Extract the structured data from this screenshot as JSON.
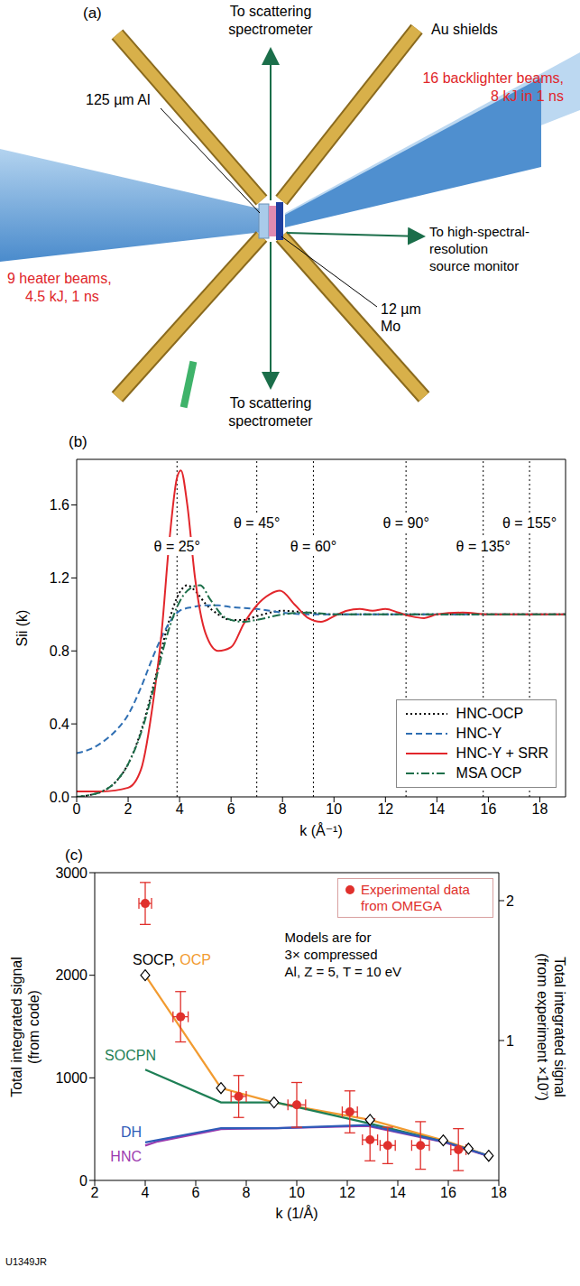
{
  "diagram": {
    "panel_label": "(a)",
    "arrow_top": [
      "To scattering",
      "spectrometer"
    ],
    "arrow_bottom": [
      "To scattering",
      "spectrometer"
    ],
    "arrow_right": [
      "To high-spectral-",
      "resolution",
      "source monitor"
    ],
    "shields": "Au shields",
    "al_layer": "125 µm Al",
    "mo_layer": [
      "12 µm",
      "Mo"
    ],
    "backlighter": [
      "16 backlighter beams,",
      "8 kJ in 1 ns"
    ],
    "heater": [
      "9 heater beams,",
      "4.5 kJ, 1 ns"
    ]
  },
  "chart_data": [
    {
      "panel_label": "(b)",
      "type": "line",
      "xlabel": "k (Å⁻¹)",
      "ylabel": "Sii (k)",
      "xlim": [
        0,
        19
      ],
      "xticks": [
        0,
        2,
        4,
        6,
        8,
        10,
        12,
        14,
        16,
        18
      ],
      "ylim": [
        0,
        1.85
      ],
      "yticks": [
        {
          "value": 0,
          "label": "0.0"
        },
        0.4,
        0.8,
        1.2,
        1.6
      ],
      "legend": "lower right",
      "annotations": [
        {
          "text": "θ = 25°",
          "x": 3.9,
          "y": 1.37
        },
        {
          "text": "θ = 45°",
          "x": 7.0,
          "y": 1.5
        },
        {
          "text": "θ = 60°",
          "x": 9.2,
          "y": 1.37
        },
        {
          "text": "θ = 90°",
          "x": 12.8,
          "y": 1.5
        },
        {
          "text": "θ = 135°",
          "x": 15.8,
          "y": 1.37
        },
        {
          "text": "θ = 155°",
          "x": 17.6,
          "y": 1.5
        }
      ],
      "series": [
        {
          "name": "HNC-OCP",
          "color": "#000000",
          "line_style": "dotted",
          "x": [
            0,
            0.5,
            1,
            1.5,
            2,
            2.5,
            3,
            3.5,
            4,
            4.3,
            4.6,
            5,
            5.5,
            6,
            6.5,
            7,
            8,
            9,
            10,
            12,
            15,
            19
          ],
          "values": [
            0,
            0.01,
            0.03,
            0.08,
            0.18,
            0.36,
            0.62,
            0.92,
            1.12,
            1.16,
            1.13,
            1.06,
            1.0,
            0.97,
            0.97,
            0.99,
            1.02,
            1.01,
            1.0,
            1.0,
            1.0,
            1.0
          ]
        },
        {
          "name": "HNC-Y",
          "color": "#2f6fb3",
          "line_style": "dashed",
          "x": [
            0,
            0.5,
            1,
            1.5,
            2,
            2.5,
            3,
            3.5,
            4,
            4.5,
            5,
            5.5,
            6,
            7,
            8,
            9,
            10,
            12,
            15,
            19
          ],
          "values": [
            0.24,
            0.26,
            0.3,
            0.36,
            0.45,
            0.6,
            0.78,
            0.93,
            1.02,
            1.04,
            1.05,
            1.05,
            1.04,
            1.03,
            1.01,
            1.0,
            1.0,
            1.0,
            1.0,
            1.0
          ]
        },
        {
          "name": "HNC-Y + SRR",
          "color": "#e2262b",
          "line_style": "solid",
          "x": [
            0,
            1,
            2,
            2.5,
            3,
            3.3,
            3.6,
            3.9,
            4.05,
            4.3,
            4.6,
            5,
            5.5,
            6,
            6.5,
            7,
            7.5,
            7.9,
            8.5,
            9,
            9.5,
            10,
            10.5,
            11,
            11.5,
            12,
            12.5,
            13,
            13.5,
            14,
            15,
            16,
            17,
            18,
            19
          ],
          "values": [
            0.03,
            0.03,
            0.05,
            0.15,
            0.55,
            0.9,
            1.4,
            1.75,
            1.79,
            1.6,
            1.2,
            0.9,
            0.8,
            0.82,
            0.95,
            1.05,
            1.11,
            1.13,
            1.05,
            0.98,
            0.96,
            0.99,
            1.02,
            1.03,
            1.02,
            1.03,
            1.01,
            0.99,
            0.98,
            1.0,
            1.01,
            1.0,
            1.0,
            1.0,
            1.0
          ]
        },
        {
          "name": "MSA OCP",
          "color": "#1d6f4a",
          "line_style": "dashdot",
          "x": [
            0,
            0.5,
            1,
            1.5,
            2,
            2.5,
            3,
            3.5,
            4,
            4.5,
            4.8,
            5.2,
            5.8,
            6.5,
            7,
            8,
            9,
            10,
            12,
            15,
            19
          ],
          "values": [
            0,
            0.01,
            0.03,
            0.08,
            0.18,
            0.35,
            0.6,
            0.88,
            1.07,
            1.15,
            1.16,
            1.08,
            0.98,
            0.96,
            0.97,
            1.0,
            1.01,
            1.0,
            1.0,
            1.0,
            1.0
          ]
        }
      ]
    },
    {
      "panel_label": "(c)",
      "type": "line",
      "xlabel": "k (1/Å)",
      "ylabel": [
        "Total integrated signal",
        "(from code)"
      ],
      "y2label": [
        "Total integrated signal",
        "(from experiment ×10⁷)"
      ],
      "xlim": [
        2,
        18
      ],
      "xticks": [
        2,
        4,
        6,
        8,
        10,
        12,
        14,
        16,
        18
      ],
      "ylim": [
        0,
        3000
      ],
      "yticks": [
        0,
        1000,
        2000,
        3000
      ],
      "y2lim": [
        0,
        2.2
      ],
      "y2ticks": [
        1,
        2
      ],
      "legend": "upper right",
      "annotation": [
        "Models are for",
        "3× compressed",
        "Al, Z = 5, T = 10 eV"
      ],
      "series": [
        {
          "name": "SOCP, OCP",
          "color": "#f29b30",
          "marker": "diamond",
          "x": [
            4,
            7,
            9.1,
            12.9,
            15.8,
            16.8,
            17.6
          ],
          "values": [
            2000,
            900,
            760,
            590,
            390,
            310,
            240
          ]
        },
        {
          "name": "SOCPN",
          "color": "#1e7f55",
          "x": [
            4,
            7,
            9.2,
            12.8,
            15.8,
            17.6
          ],
          "values": [
            1080,
            760,
            760,
            560,
            380,
            240
          ]
        },
        {
          "name": "HNC",
          "color": "#9c3bb0",
          "x": [
            4,
            4.5,
            7,
            9.2,
            12.8,
            15.8,
            17.6
          ],
          "values": [
            340,
            380,
            500,
            510,
            530,
            375,
            235
          ]
        },
        {
          "name": "DH",
          "color": "#2e5cb8",
          "x": [
            4,
            7,
            9.2,
            12.8,
            15.8,
            17.6
          ],
          "values": [
            370,
            510,
            510,
            540,
            380,
            240
          ]
        },
        {
          "name": "Experimental data from OMEGA",
          "type": "scatter",
          "axis": "y2",
          "color": "#e0302c",
          "marker": "circle",
          "x": [
            4,
            5.4,
            7.7,
            10,
            12.1,
            12.9,
            13.6,
            14.9,
            16.4
          ],
          "values": [
            1.98,
            1.17,
            0.6,
            0.54,
            0.49,
            0.29,
            0.25,
            0.25,
            0.22
          ],
          "x_err": [
            0.25,
            0.3,
            0.3,
            0.35,
            0.3,
            0.3,
            0.3,
            0.35,
            0.3
          ],
          "y_err": [
            0.15,
            0.18,
            0.15,
            0.16,
            0.15,
            0.15,
            0.13,
            0.17,
            0.15
          ]
        }
      ]
    }
  ],
  "figure_id": "U1349JR"
}
